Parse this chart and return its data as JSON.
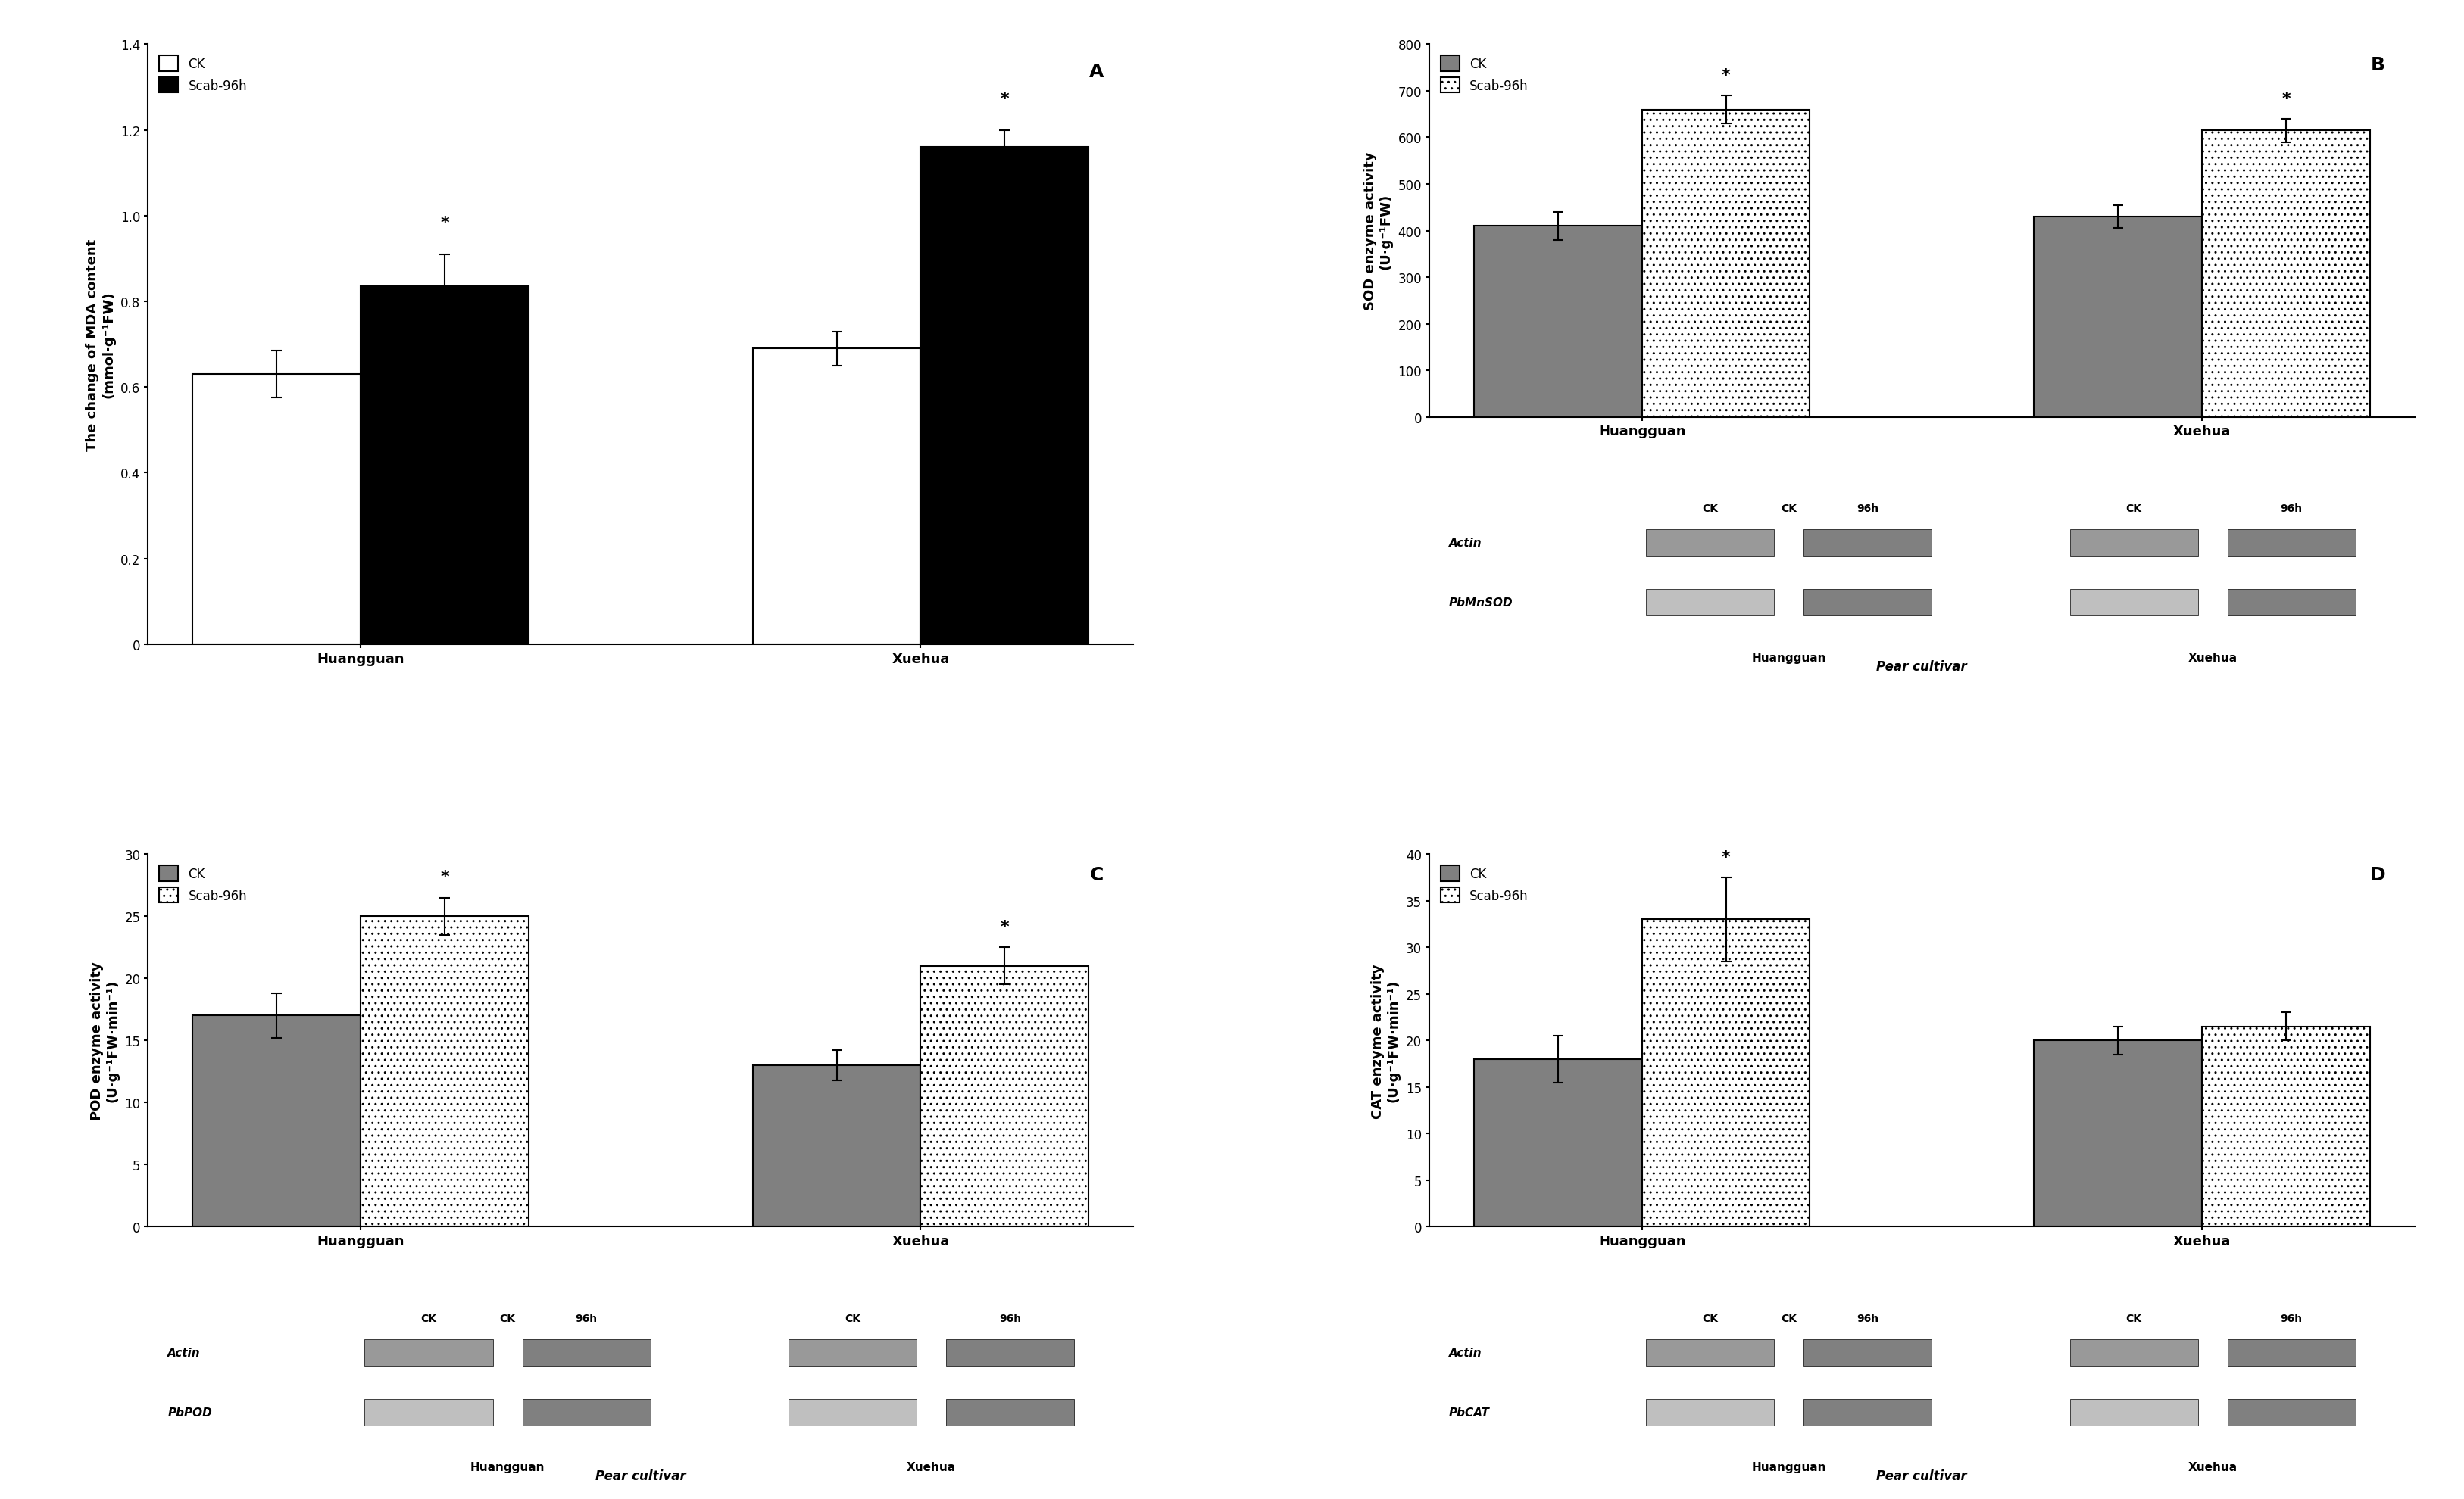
{
  "panel_A": {
    "title": "A",
    "ylabel": "The change of MDA content\n(mmol·g⁻¹FW)",
    "ylim": [
      0,
      1.4
    ],
    "yticks": [
      0,
      0.2,
      0.4,
      0.6,
      0.8,
      1.0,
      1.2,
      1.4
    ],
    "categories": [
      "Huangguan",
      "Xuehua"
    ],
    "ck_values": [
      0.63,
      0.69
    ],
    "scab_values": [
      0.835,
      1.16
    ],
    "ck_errors": [
      0.055,
      0.04
    ],
    "scab_errors": [
      0.075,
      0.04
    ],
    "scab_sig": [
      true,
      true
    ],
    "legend_ck": "CK",
    "legend_scab": "Scab-96h"
  },
  "panel_B": {
    "title": "B",
    "ylabel": "SOD enzyme activity\n(U·g⁻¹FW)",
    "ylim": [
      0,
      800
    ],
    "yticks": [
      0,
      100,
      200,
      300,
      400,
      500,
      600,
      700,
      800
    ],
    "categories": [
      "Huangguan",
      "Xuehua"
    ],
    "ck_values": [
      410,
      430
    ],
    "scab_values": [
      660,
      615
    ],
    "ck_errors": [
      30,
      25
    ],
    "scab_errors": [
      30,
      25
    ],
    "scab_sig": [
      true,
      true
    ],
    "legend_ck": "CK",
    "legend_scab": "Scab-96h",
    "gel_labels": [
      "Actin",
      "PbMnSOD"
    ],
    "gel_cols": [
      "CK",
      "96h"
    ]
  },
  "panel_C": {
    "title": "C",
    "ylabel": "POD enzyme activity\n(U·g⁻¹FW·min⁻¹)",
    "ylim": [
      0,
      30
    ],
    "yticks": [
      0,
      5,
      10,
      15,
      20,
      25,
      30
    ],
    "categories": [
      "Huangguan",
      "Xuehua"
    ],
    "ck_values": [
      17,
      13
    ],
    "scab_values": [
      25,
      21
    ],
    "ck_errors": [
      1.8,
      1.2
    ],
    "scab_errors": [
      1.5,
      1.5
    ],
    "scab_sig": [
      true,
      true
    ],
    "legend_ck": "CK",
    "legend_scab": "Scab-96h",
    "gel_labels": [
      "Actin",
      "PbPOD"
    ],
    "gel_cols": [
      "CK",
      "96h"
    ]
  },
  "panel_D": {
    "title": "D",
    "ylabel": "CAT enzyme activity\n(U·g⁻¹FW·min⁻¹)",
    "ylim": [
      0,
      40
    ],
    "yticks": [
      0,
      5,
      10,
      15,
      20,
      25,
      30,
      35,
      40
    ],
    "categories": [
      "Huangguan",
      "Xuehua"
    ],
    "ck_values": [
      18,
      20
    ],
    "scab_values": [
      33,
      21.5
    ],
    "ck_errors": [
      2.5,
      1.5
    ],
    "scab_errors": [
      4.5,
      1.5
    ],
    "scab_sig": [
      true,
      false
    ],
    "legend_ck": "CK",
    "legend_scab": "Scab-96h",
    "gel_labels": [
      "Actin",
      "PbCAT"
    ],
    "gel_cols": [
      "CK",
      "96h"
    ]
  },
  "bar_width": 0.3,
  "ck_color": "#808080",
  "scab_color": "white",
  "scab_hatch": "..",
  "font_size": 14,
  "label_font_size": 13,
  "tick_font_size": 12,
  "pear_cultivar_label": "Pear cultivar"
}
